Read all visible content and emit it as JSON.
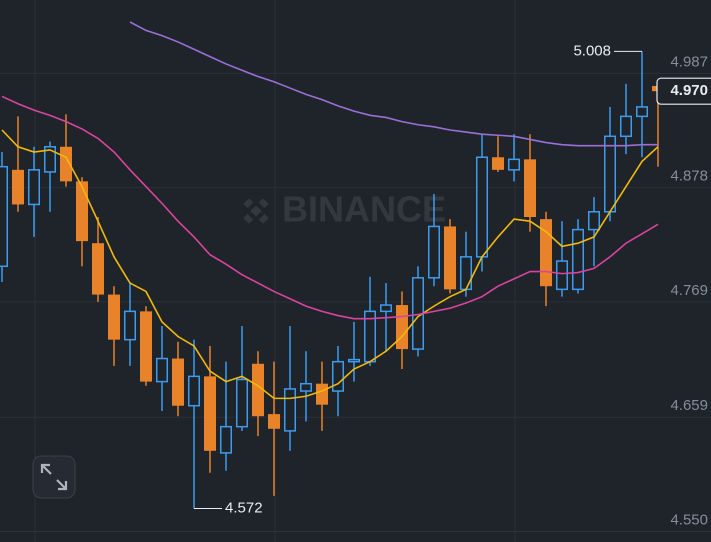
{
  "chart_data": {
    "type": "candlestick",
    "watermark": "BINANCE",
    "up_color": "#3d9cf0",
    "down_color": "#e8832a",
    "ylim": [
      4.54,
      5.057
    ],
    "yticks": [
      4.987,
      4.878,
      4.769,
      4.659,
      {
        "value": 4.55,
        "label": "4.550"
      }
    ],
    "grid": true,
    "open": [
      4.803,
      4.895,
      4.862,
      4.893,
      4.917,
      4.884,
      4.825,
      4.776,
      4.733,
      4.76,
      4.693,
      4.715,
      4.67,
      4.698,
      4.625,
      4.65,
      4.71,
      4.662,
      4.646,
      4.684,
      4.691,
      4.684,
      4.712,
      4.712,
      4.76,
      4.766,
      4.724,
      4.792,
      4.841,
      4.781,
      4.812,
      4.907,
      4.895,
      4.905,
      4.848,
      4.781,
      4.781,
      4.838,
      4.855,
      4.927,
      4.946,
      4.975
    ],
    "high": [
      4.912,
      4.946,
      4.917,
      4.922,
      4.948,
      4.888,
      4.85,
      4.784,
      4.788,
      4.765,
      4.746,
      4.731,
      4.733,
      4.727,
      4.712,
      4.746,
      4.722,
      4.712,
      4.746,
      4.722,
      4.712,
      4.727,
      4.75,
      4.793,
      4.787,
      4.779,
      4.803,
      4.872,
      4.848,
      4.836,
      4.929,
      4.927,
      4.929,
      4.929,
      4.855,
      4.846,
      4.848,
      4.869,
      4.955,
      4.977,
      5.008,
      4.979
    ],
    "low": [
      4.788,
      4.855,
      4.831,
      4.855,
      4.879,
      4.803,
      4.769,
      4.708,
      4.708,
      4.689,
      4.665,
      4.66,
      4.572,
      4.606,
      4.608,
      4.646,
      4.641,
      4.584,
      4.627,
      4.655,
      4.646,
      4.66,
      4.693,
      4.708,
      4.722,
      4.705,
      4.717,
      4.784,
      4.777,
      4.774,
      4.798,
      4.893,
      4.884,
      4.836,
      4.765,
      4.774,
      4.777,
      4.803,
      4.846,
      4.91,
      4.907,
      4.898
    ],
    "close": [
      4.898,
      4.862,
      4.895,
      4.917,
      4.884,
      4.827,
      4.776,
      4.733,
      4.76,
      4.693,
      4.715,
      4.67,
      4.698,
      4.627,
      4.65,
      4.695,
      4.66,
      4.648,
      4.686,
      4.691,
      4.671,
      4.712,
      4.714,
      4.76,
      4.766,
      4.724,
      4.792,
      4.841,
      4.781,
      4.812,
      4.907,
      4.895,
      4.905,
      4.85,
      4.784,
      4.808,
      4.838,
      4.855,
      4.927,
      4.946,
      4.955,
      4.97
    ],
    "lines": [
      {
        "color": "#f0b90b",
        "values": [
          4.933,
          4.917,
          4.912,
          4.914,
          4.907,
          4.879,
          4.846,
          4.812,
          4.787,
          4.779,
          4.75,
          4.736,
          4.727,
          4.703,
          4.693,
          4.698,
          4.689,
          4.677,
          4.677,
          4.679,
          4.684,
          4.691,
          4.705,
          4.712,
          4.722,
          4.736,
          4.755,
          4.765,
          4.774,
          4.781,
          4.812,
          4.831,
          4.848,
          4.846,
          4.836,
          4.822,
          4.825,
          4.831,
          4.855,
          4.879,
          4.903,
          4.917
        ]
      },
      {
        "color": "#d9449f",
        "values": [
          4.965,
          4.958,
          4.952,
          4.947,
          4.941,
          4.934,
          4.925,
          4.912,
          4.895,
          4.879,
          4.863,
          4.846,
          4.831,
          4.814,
          4.805,
          4.795,
          4.787,
          4.779,
          4.772,
          4.765,
          4.76,
          4.756,
          4.753,
          4.753,
          4.754,
          4.755,
          4.757,
          4.76,
          4.763,
          4.768,
          4.774,
          4.784,
          4.791,
          4.798,
          4.798,
          4.796,
          4.797,
          4.801,
          4.812,
          4.825,
          4.834,
          4.843
        ]
      },
      {
        "color": "#9a70d8",
        "values": [
          null,
          null,
          null,
          null,
          null,
          null,
          null,
          null,
          5.036,
          5.028,
          5.023,
          5.017,
          5.01,
          5.003,
          4.996,
          4.99,
          4.984,
          4.979,
          4.973,
          4.967,
          4.962,
          4.956,
          4.951,
          4.947,
          4.945,
          4.941,
          4.938,
          4.936,
          4.933,
          4.931,
          4.929,
          4.928,
          4.927,
          4.924,
          4.921,
          4.919,
          4.918,
          4.918,
          4.918,
          4.918,
          4.919,
          4.919
        ]
      }
    ],
    "max_marker": {
      "index": 40,
      "value": 5.008,
      "label": "5.008"
    },
    "min_marker": {
      "index": 12,
      "value": 4.572,
      "label": "4.572"
    },
    "last_price": {
      "value": 4.97,
      "label": "4.970"
    }
  }
}
